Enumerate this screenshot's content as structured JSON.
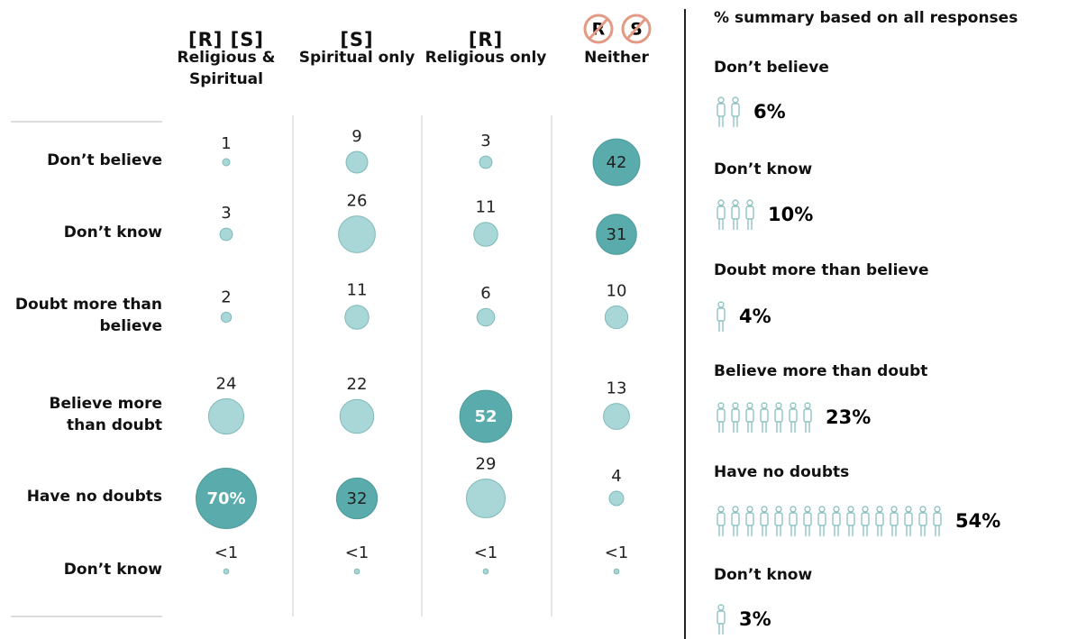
{
  "chart_data": {
    "type": "bubble-table",
    "categories": [
      "Don’t believe",
      "Don’t know",
      "Doubt more than believe",
      "Believe more than doubt",
      "Have no doubts",
      "Don’t know"
    ],
    "series": [
      {
        "code": "[R] [S]",
        "name": "Religious & Spiritual",
        "values": [
          1,
          3,
          2,
          24,
          70,
          0.5
        ],
        "value_labels": [
          "1",
          "3",
          "2",
          "24",
          "70%",
          "<1"
        ]
      },
      {
        "code": "[S]",
        "name": "Spiritual only",
        "values": [
          9,
          26,
          11,
          22,
          32,
          0.5
        ],
        "value_labels": [
          "9",
          "26",
          "11",
          "22",
          "32",
          "<1"
        ]
      },
      {
        "code": "[R]",
        "name": "Religious only",
        "values": [
          3,
          11,
          6,
          52,
          29,
          0.5
        ],
        "value_labels": [
          "3",
          "11",
          "6",
          "52",
          "29",
          "<1"
        ]
      },
      {
        "code_icons": [
          "R",
          "S"
        ],
        "name": "Neither",
        "values": [
          42,
          31,
          10,
          13,
          4,
          0.5
        ],
        "value_labels": [
          "42",
          "31",
          "10",
          "13",
          "4",
          "<1"
        ]
      }
    ],
    "color": "#a9d6d6",
    "highlight_color": "#5aabab"
  },
  "summary": {
    "title": "% summary based on all responses",
    "items": [
      {
        "label": "Don’t believe",
        "value": 6,
        "value_label": "6%"
      },
      {
        "label": "Don’t know",
        "value": 10,
        "value_label": "10%"
      },
      {
        "label": "Doubt more than believe",
        "value": 4,
        "value_label": "4%"
      },
      {
        "label": "Believe more than doubt",
        "value": 23,
        "value_label": "23%"
      },
      {
        "label": "Have no doubts",
        "value": 54,
        "value_label": "54%"
      },
      {
        "label": "Don’t know",
        "value": 3,
        "value_label": "3%"
      }
    ]
  }
}
